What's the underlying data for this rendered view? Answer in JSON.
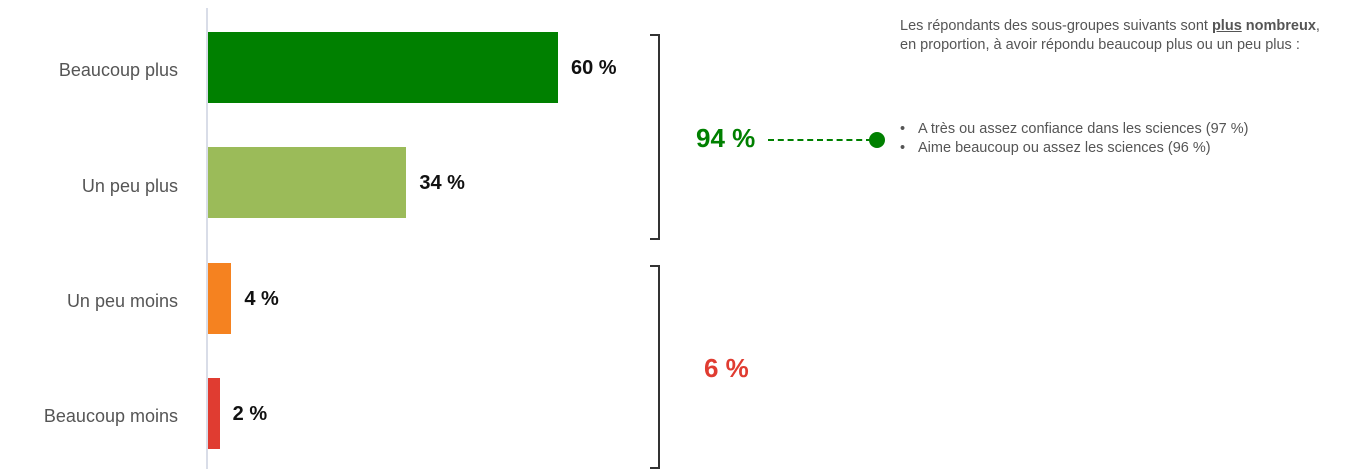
{
  "chart_data": {
    "type": "bar",
    "orientation": "horizontal",
    "categories": [
      "Beaucoup plus",
      "Un peu plus",
      "Un peu moins",
      "Beaucoup moins"
    ],
    "values": [
      60,
      34,
      4,
      2
    ],
    "value_labels": [
      "60 %",
      "34 %",
      "4 %",
      "2 %"
    ],
    "colors": [
      "#008000",
      "#9bbb59",
      "#f58220",
      "#e03c31"
    ],
    "xlim": [
      0,
      100
    ],
    "groups": [
      {
        "label": "94 %",
        "color": "#008000",
        "categories": [
          "Beaucoup plus",
          "Un peu plus"
        ]
      },
      {
        "label": "6 %",
        "color": "#e03c31",
        "categories": [
          "Un peu moins",
          "Beaucoup moins"
        ]
      }
    ]
  },
  "note": {
    "text_before": "Les répondants des sous-groupes suivants sont ",
    "highlight_1": "plus",
    "highlight_2": "nombreux",
    "text_after": ", en proportion, à avoir répondu beaucoup plus ou un peu plus :",
    "items": [
      "A très ou assez confiance dans les sciences (97 %)",
      "Aime beaucoup ou assez les sciences (96 %)"
    ]
  }
}
